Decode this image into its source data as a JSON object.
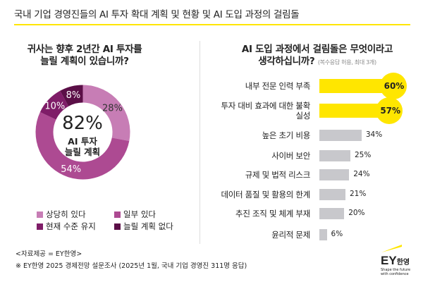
{
  "title": "국내 기업 경영진들의 AI 투자 확대 계획 및  현황 및 AI 도입 과정의 걸림돌",
  "left": {
    "question_line1": "귀사는 향후 2년간 AI 투자를",
    "question_line2": "늘릴 계획이 있습니까?",
    "center_value": "82%",
    "center_label_line1": "AI 투자",
    "center_label_line2": "늘릴 계획"
  },
  "right": {
    "question_line1": "AI 도입 과정에서 걸림돌은 무엇이라고",
    "question_line2": "생각하십니까?",
    "note": "(복수응답 허용, 최대 3개)"
  },
  "chart_data": [
    {
      "type": "pie",
      "donut": true,
      "categories": [
        "상당히 있다",
        "일부 있다",
        "현재 수준 유지",
        "늘릴 계획 없다"
      ],
      "values": [
        28,
        54,
        10,
        8
      ],
      "labels": [
        "28%",
        "54%",
        "10%",
        "8%"
      ],
      "colors": [
        "#c77db5",
        "#ad4a92",
        "#7f1d68",
        "#5b0f47"
      ],
      "legend": "bottom"
    },
    {
      "type": "bar",
      "orientation": "horizontal",
      "categories": [
        "내부 전문 인력 부족",
        "투자 대비 효과에 대한 불확실성",
        "높은 초기 비용",
        "사이버 보안",
        "규제 및 법적 리스크",
        "데이터 품질 및 활용의 한계",
        "추진 조직 및 체계 부재",
        "윤리적 문제"
      ],
      "values": [
        60,
        57,
        34,
        25,
        24,
        21,
        20,
        6
      ],
      "labels": [
        "60%",
        "57%",
        "34%",
        "25%",
        "24%",
        "21%",
        "20%",
        "6%"
      ],
      "highlight_color": "#ffe600",
      "bar_color": "#c8c8cc"
    }
  ],
  "footer": {
    "source": "<자료제공 = EY한영>",
    "note": "※ EY한영 2025 경제전망 설문조사 (2025년 1월, 국내 기업 경영진 311명 응답)"
  },
  "logo": {
    "brand": "EY",
    "name": "한영",
    "tagline_line1": "Shape the future",
    "tagline_line2": "with confidence"
  }
}
